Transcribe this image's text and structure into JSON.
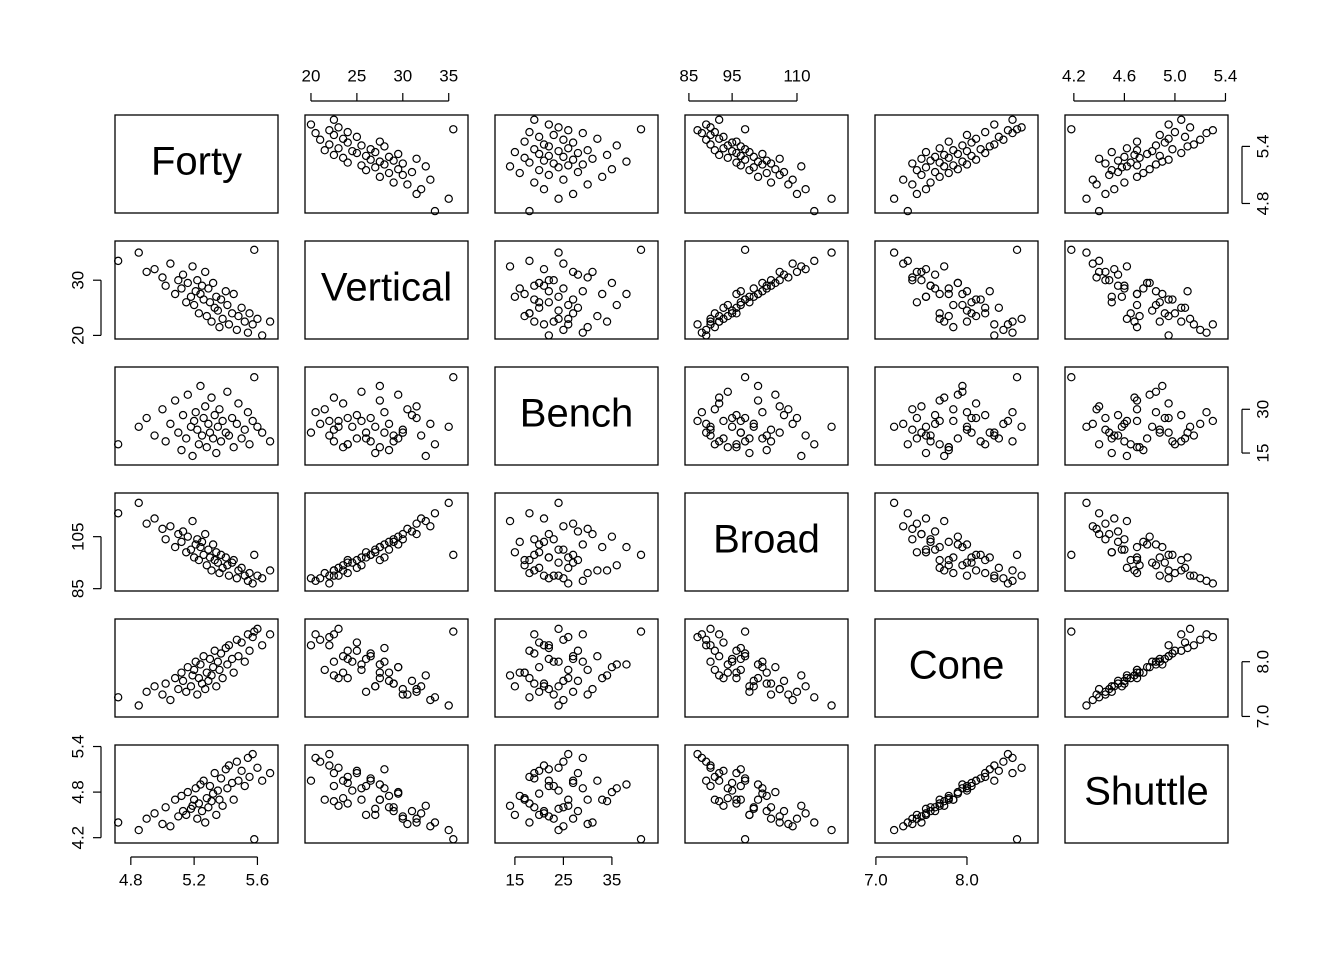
{
  "chart_data": {
    "type": "scatter-matrix",
    "variables": [
      {
        "name": "Forty",
        "lim": [
          4.7,
          5.73
        ],
        "ticks_x": [
          4.8,
          5.2,
          5.6
        ],
        "ticks_y": [
          4.8,
          5.4
        ],
        "values": [
          4.72,
          4.85,
          4.9,
          4.95,
          5.0,
          5.02,
          5.05,
          5.08,
          5.1,
          5.12,
          5.13,
          5.15,
          5.16,
          5.18,
          5.19,
          5.2,
          5.21,
          5.22,
          5.23,
          5.24,
          5.25,
          5.26,
          5.27,
          5.28,
          5.29,
          5.3,
          5.31,
          5.32,
          5.33,
          5.34,
          5.35,
          5.36,
          5.37,
          5.38,
          5.4,
          5.41,
          5.42,
          5.44,
          5.45,
          5.47,
          5.48,
          5.5,
          5.52,
          5.54,
          5.55,
          5.57,
          5.58,
          5.6,
          5.63,
          5.68
        ]
      },
      {
        "name": "Vertical",
        "lim": [
          19.35,
          37.1
        ],
        "ticks_x": [
          20,
          25,
          30,
          35
        ],
        "ticks_y": [
          20,
          30
        ],
        "values": [
          33.5,
          35,
          31.5,
          32,
          30.5,
          29,
          33,
          27.5,
          30,
          28.5,
          31,
          26,
          29.5,
          27,
          32.5,
          25.5,
          28,
          30,
          24,
          27.5,
          29,
          26.5,
          31.5,
          23.5,
          28.5,
          26,
          22.5,
          29.5,
          25,
          27,
          24.5,
          21.5,
          26.5,
          23,
          28,
          25.5,
          22,
          24,
          27.5,
          21,
          23.5,
          25,
          22.5,
          20.5,
          24,
          22,
          35.5,
          23,
          20,
          22.5
        ]
      },
      {
        "name": "Bench",
        "lim": [
          10.9,
          44.5
        ],
        "ticks_x": [
          15,
          25,
          35
        ],
        "ticks_y": [
          15,
          30
        ],
        "values": [
          18,
          24,
          27,
          21,
          30,
          19,
          25,
          33,
          22,
          16,
          28,
          20,
          35,
          24,
          14,
          26,
          29,
          23,
          18,
          38,
          21,
          27,
          31,
          17,
          25,
          22,
          34,
          20,
          28,
          15,
          24,
          30,
          19,
          26,
          22,
          36,
          21,
          27,
          17,
          25,
          32,
          20,
          23,
          29,
          18,
          26,
          41,
          24,
          22,
          19
        ]
      },
      {
        "name": "Broad",
        "lim": [
          84.1,
          121.8
        ],
        "ticks_x": [
          85,
          95,
          110
        ],
        "ticks_y": [
          85,
          105
        ],
        "values": [
          114,
          118,
          110,
          112,
          108,
          104,
          109,
          101,
          106,
          103,
          107,
          99,
          105,
          100,
          111,
          97,
          102,
          104,
          96,
          101,
          103,
          98,
          106,
          94,
          100,
          97,
          92,
          102,
          96,
          99,
          95,
          91,
          98,
          93,
          97,
          94,
          90,
          95,
          96,
          89,
          92,
          93,
          90,
          88,
          91,
          87,
          98,
          90,
          89,
          92
        ]
      },
      {
        "name": "Cone",
        "lim": [
          6.99,
          8.78
        ],
        "ticks_x": [
          {
            "value": 7,
            "label": "7.0"
          },
          {
            "value": 8,
            "label": "8.0"
          }
        ],
        "ticks_y": [
          {
            "value": 7,
            "label": "7.0"
          },
          {
            "value": 8,
            "label": "8.0"
          }
        ],
        "values": [
          7.35,
          7.2,
          7.45,
          7.55,
          7.4,
          7.6,
          7.3,
          7.7,
          7.5,
          7.8,
          7.65,
          7.45,
          7.9,
          7.55,
          7.75,
          7.85,
          8.0,
          7.4,
          7.7,
          7.95,
          7.6,
          8.1,
          7.5,
          7.8,
          7.65,
          8.05,
          7.75,
          7.9,
          8.2,
          7.55,
          8.0,
          7.85,
          8.15,
          7.7,
          8.25,
          7.95,
          8.3,
          8.05,
          7.8,
          8.4,
          8.1,
          8.35,
          8.0,
          8.5,
          8.2,
          8.45,
          8.55,
          8.6,
          8.3,
          8.5
        ]
      },
      {
        "name": "Shuttle",
        "lim": [
          4.13,
          5.42
        ],
        "ticks_x": [
          4.2,
          4.6,
          {
            "value": 5,
            "label": "5.0"
          },
          5.4
        ],
        "ticks_y": [
          4.2,
          4.8,
          5.4
        ],
        "values": [
          4.4,
          4.3,
          4.45,
          4.52,
          4.38,
          4.6,
          4.35,
          4.7,
          4.48,
          4.75,
          4.55,
          4.5,
          4.8,
          4.58,
          4.62,
          4.7,
          4.85,
          4.45,
          4.65,
          4.9,
          4.55,
          4.95,
          4.4,
          4.72,
          4.6,
          4.88,
          4.68,
          4.78,
          5.05,
          4.5,
          4.82,
          4.7,
          4.98,
          4.62,
          5.1,
          4.85,
          5.15,
          4.92,
          4.7,
          5.2,
          4.95,
          5.08,
          4.88,
          5.25,
          5.0,
          5.3,
          4.18,
          5.12,
          4.95,
          5.05
        ]
      }
    ]
  }
}
